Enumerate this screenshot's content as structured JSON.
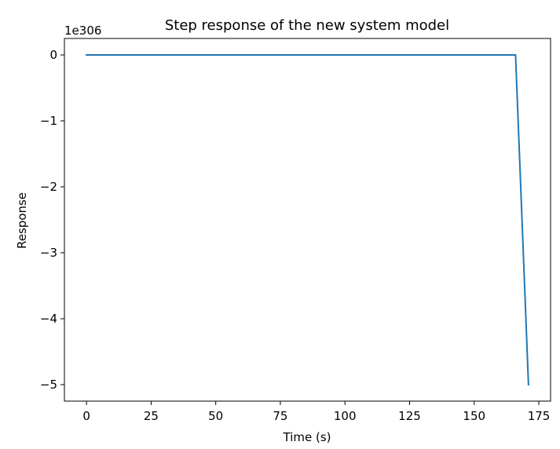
{
  "chart_data": {
    "type": "line",
    "title": "Step response of the new system model",
    "xlabel": "Time (s)",
    "ylabel": "Response",
    "y_offset_text": "1e306",
    "xlim": [
      -8.55,
      179.55
    ],
    "ylim": [
      -5.25,
      0.25
    ],
    "x_ticks": [
      0,
      25,
      50,
      75,
      100,
      125,
      150,
      175
    ],
    "x_tick_labels": [
      "0",
      "25",
      "50",
      "75",
      "100",
      "125",
      "150",
      "175"
    ],
    "y_ticks": [
      0,
      -1,
      -2,
      -3,
      -4,
      -5
    ],
    "y_tick_labels": [
      "0",
      "−1",
      "−2",
      "−3",
      "−4",
      "−5"
    ],
    "grid": false,
    "series": [
      {
        "color": "#1f77b4",
        "x": [
          0,
          25,
          50,
          75,
          100,
          125,
          150,
          166,
          171
        ],
        "y": [
          0,
          0,
          0,
          0,
          0,
          0,
          0,
          0,
          -5
        ]
      }
    ]
  }
}
